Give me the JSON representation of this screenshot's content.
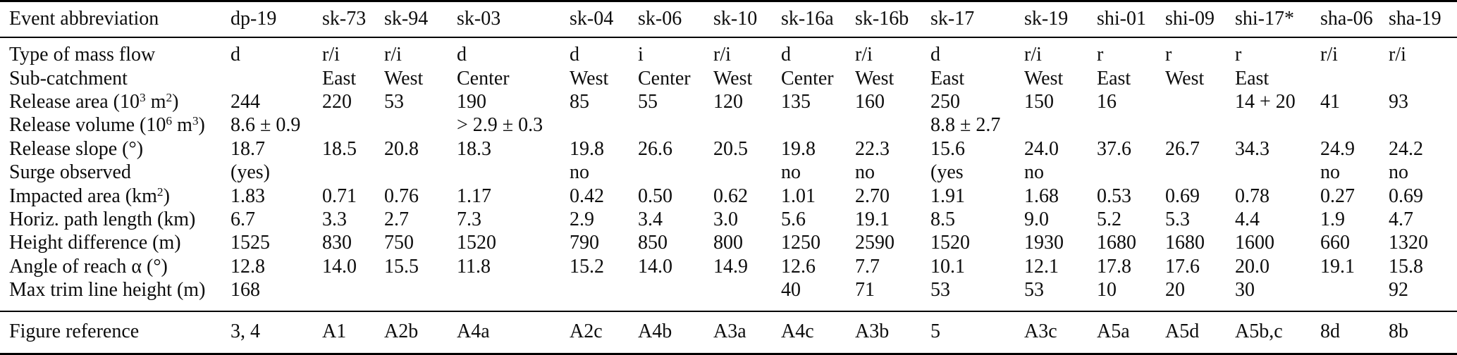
{
  "table": {
    "header": {
      "label": "Event abbreviation",
      "columns": [
        "dp-19",
        "sk-73",
        "sk-94",
        "sk-03",
        "sk-04",
        "sk-06",
        "sk-10",
        "sk-16a",
        "sk-16b",
        "sk-17",
        "sk-19",
        "shi-01",
        "shi-09",
        "shi-17*",
        "sha-06",
        "sha-19"
      ]
    },
    "rows": [
      {
        "label": "Type of mass flow",
        "values": [
          "d",
          "r/i",
          "r/i",
          "d",
          "d",
          "i",
          "r/i",
          "d",
          "r/i",
          "d",
          "r/i",
          "r",
          "r",
          "r",
          "r/i",
          "r/i"
        ]
      },
      {
        "label": "Sub-catchment",
        "values": [
          "",
          "East",
          "West",
          "Center",
          "West",
          "Center",
          "West",
          "Center",
          "West",
          "East",
          "West",
          "East",
          "West",
          "East",
          "",
          ""
        ]
      },
      {
        "label": "Release area (10^{3} m^{2})",
        "values": [
          "244",
          "220",
          "53",
          "190",
          "85",
          "55",
          "120",
          "135",
          "160",
          "250",
          "150",
          "16",
          "",
          "14 + 20",
          "41",
          "93"
        ]
      },
      {
        "label": "Release volume (10^{6} m^{3})",
        "values": [
          "8.6 ± 0.9",
          "",
          "",
          "> 2.9 ± 0.3",
          "",
          "",
          "",
          "",
          "",
          "8.8 ± 2.7",
          "",
          "",
          "",
          "",
          "",
          ""
        ]
      },
      {
        "label": "Release slope (°)",
        "values": [
          "18.7",
          "18.5",
          "20.8",
          "18.3",
          "19.8",
          "26.6",
          "20.5",
          "19.8",
          "22.3",
          "15.6",
          "24.0",
          "37.6",
          "26.7",
          "34.3",
          "24.9",
          "24.2"
        ]
      },
      {
        "label": "Surge observed",
        "values": [
          "(yes)",
          "",
          "",
          "",
          "no",
          "",
          "",
          "no",
          "no",
          "(yes",
          "no",
          "",
          "",
          "",
          "no",
          "no"
        ]
      },
      {
        "label": "Impacted area (km^{2})",
        "values": [
          "1.83",
          "0.71",
          "0.76",
          "1.17",
          "0.42",
          "0.50",
          "0.62",
          "1.01",
          "2.70",
          "1.91",
          "1.68",
          "0.53",
          "0.69",
          "0.78",
          "0.27",
          "0.69"
        ]
      },
      {
        "label": "Horiz. path length (km)",
        "values": [
          "6.7",
          "3.3",
          "2.7",
          "7.3",
          "2.9",
          "3.4",
          "3.0",
          "5.6",
          "19.1",
          "8.5",
          "9.0",
          "5.2",
          "5.3",
          "4.4",
          "1.9",
          "4.7"
        ]
      },
      {
        "label": "Height difference (m)",
        "values": [
          "1525",
          "830",
          "750",
          "1520",
          "790",
          "850",
          "800",
          "1250",
          "2590",
          "1520",
          "1930",
          "1680",
          "1680",
          "1600",
          "660",
          "1320"
        ]
      },
      {
        "label": "Angle of reach α (°)",
        "values": [
          "12.8",
          "14.0",
          "15.5",
          "11.8",
          "15.2",
          "14.0",
          "14.9",
          "12.6",
          "7.7",
          "10.1",
          "12.1",
          "17.8",
          "17.6",
          "20.0",
          "19.1",
          "15.8"
        ]
      },
      {
        "label": "Max trim line height (m)",
        "values": [
          "168",
          "",
          "",
          "",
          "",
          "",
          "",
          "40",
          "71",
          "53",
          "53",
          "10",
          "20",
          "30",
          "",
          "92"
        ]
      }
    ],
    "footer": {
      "label": "Figure reference",
      "values": [
        "3, 4",
        "A1",
        "A2b",
        "A4a",
        "A2c",
        "A4b",
        "A3a",
        "A4c",
        "A3b",
        "5",
        "A3c",
        "A5a",
        "A5d",
        "A5b,c",
        "8d",
        "8b"
      ]
    }
  },
  "colors": {
    "text": "#0d0d0d",
    "rule": "#000000",
    "background": "#ffffff"
  }
}
